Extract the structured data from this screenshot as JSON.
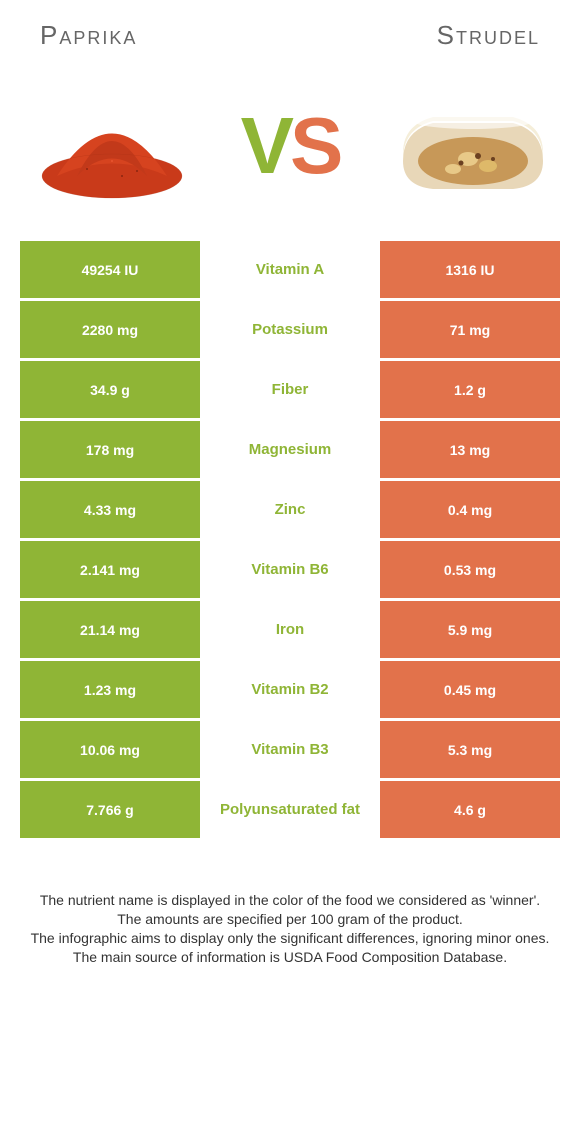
{
  "header": {
    "left_name": "Paprika",
    "right_name": "Strudel",
    "vs_v": "V",
    "vs_s": "S"
  },
  "colors": {
    "left_bg": "#8fb536",
    "right_bg": "#e2724b",
    "mid_text_left_win": "#8fb536",
    "mid_text_right_win": "#e2724b"
  },
  "rows": [
    {
      "left": "49254 IU",
      "nutrient": "Vitamin A",
      "right": "1316 IU",
      "winner": "left"
    },
    {
      "left": "2280 mg",
      "nutrient": "Potassium",
      "right": "71 mg",
      "winner": "left"
    },
    {
      "left": "34.9 g",
      "nutrient": "Fiber",
      "right": "1.2 g",
      "winner": "left"
    },
    {
      "left": "178 mg",
      "nutrient": "Magnesium",
      "right": "13 mg",
      "winner": "left"
    },
    {
      "left": "4.33 mg",
      "nutrient": "Zinc",
      "right": "0.4 mg",
      "winner": "left"
    },
    {
      "left": "2.141 mg",
      "nutrient": "Vitamin B6",
      "right": "0.53 mg",
      "winner": "left"
    },
    {
      "left": "21.14 mg",
      "nutrient": "Iron",
      "right": "5.9 mg",
      "winner": "left"
    },
    {
      "left": "1.23 mg",
      "nutrient": "Vitamin B2",
      "right": "0.45 mg",
      "winner": "left"
    },
    {
      "left": "10.06 mg",
      "nutrient": "Vitamin B3",
      "right": "5.3 mg",
      "winner": "left"
    },
    {
      "left": "7.766 g",
      "nutrient": "Polyunsaturated fat",
      "right": "4.6 g",
      "winner": "left"
    }
  ],
  "footer": {
    "l1": "The nutrient name is displayed in the color of the food we considered as 'winner'.",
    "l2": "The amounts are specified per 100 gram of the product.",
    "l3": "The infographic aims to display only the significant differences, ignoring minor ones.",
    "l4": "The main source of information is USDA Food Composition Database."
  }
}
